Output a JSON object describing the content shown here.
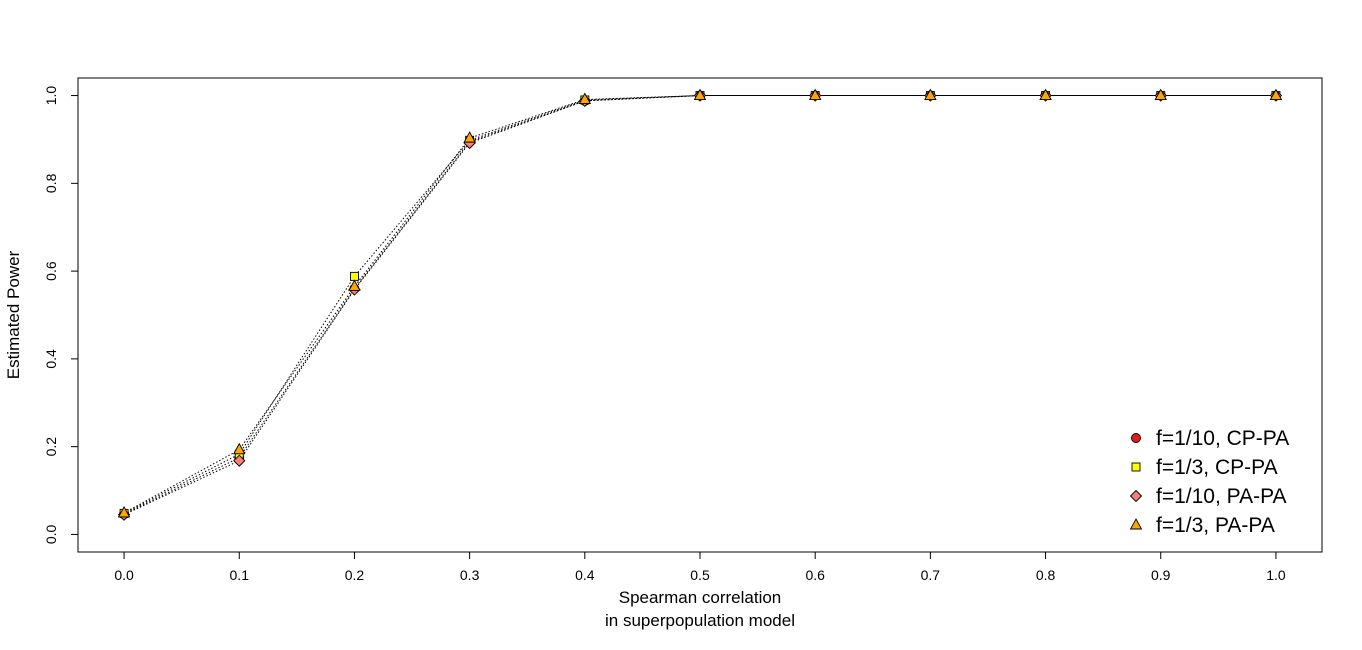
{
  "chart_data": {
    "type": "line",
    "xlabel": [
      "Spearman correlation",
      "in superpopulation model"
    ],
    "ylabel": "Estimated Power",
    "x": [
      0.0,
      0.1,
      0.2,
      0.3,
      0.4,
      0.5,
      0.6,
      0.7,
      0.8,
      0.9,
      1.0
    ],
    "xticks": [
      "0.0",
      "0.1",
      "0.2",
      "0.3",
      "0.4",
      "0.5",
      "0.6",
      "0.7",
      "0.8",
      "0.9",
      "1.0"
    ],
    "yticks": [
      "0.0",
      "0.2",
      "0.4",
      "0.6",
      "0.8",
      "1.0"
    ],
    "xlim": [
      -0.04,
      1.04
    ],
    "ylim": [
      -0.04,
      1.04
    ],
    "grid": false,
    "legend_position": "bottom-right",
    "line_style": "dotted",
    "series": [
      {
        "name": "f=1/10, CP-PA",
        "marker": "circle",
        "color": "#e31a1c",
        "values": [
          0.046,
          0.175,
          0.56,
          0.895,
          0.988,
          1.0,
          1.0,
          1.0,
          1.0,
          1.0,
          1.0
        ]
      },
      {
        "name": "f=1/3,  CP-PA",
        "marker": "square",
        "color": "#ffff00",
        "values": [
          0.048,
          0.183,
          0.588,
          0.898,
          0.99,
          1.0,
          1.0,
          1.0,
          1.0,
          1.0,
          1.0
        ]
      },
      {
        "name": "f=1/10, PA-PA",
        "marker": "diamond",
        "color": "#fa8072",
        "values": [
          0.045,
          0.168,
          0.558,
          0.892,
          0.988,
          1.0,
          1.0,
          1.0,
          1.0,
          1.0,
          1.0
        ]
      },
      {
        "name": "f=1/3,  PA-PA",
        "marker": "triangle",
        "color": "#ffa500",
        "values": [
          0.049,
          0.193,
          0.565,
          0.903,
          0.991,
          1.0,
          1.0,
          1.0,
          1.0,
          1.0,
          1.0
        ]
      }
    ]
  }
}
